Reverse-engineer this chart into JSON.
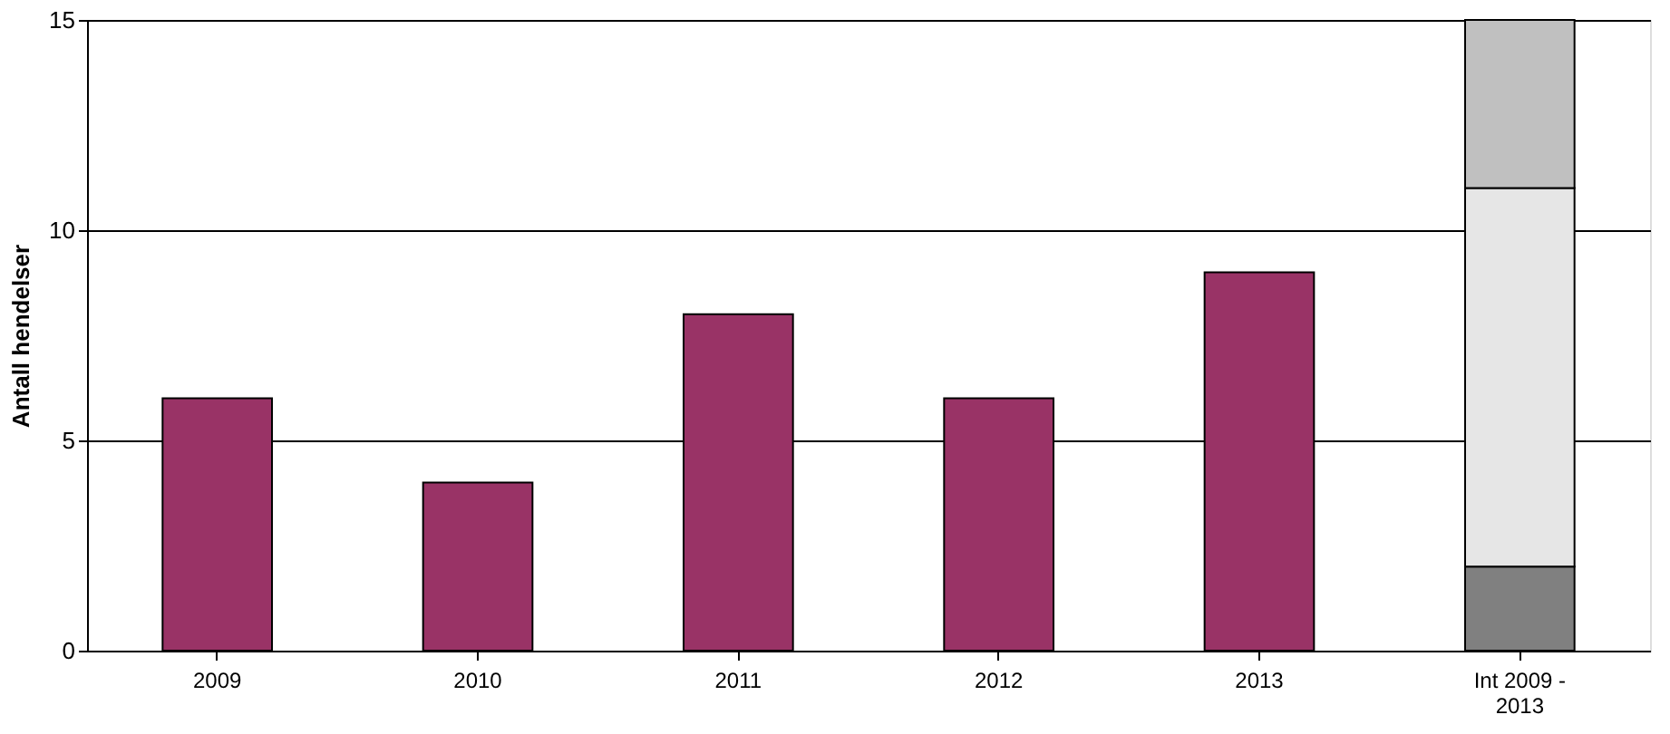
{
  "chart_data": {
    "type": "bar",
    "stacked": true,
    "ylabel": "Antall hendelser",
    "categories": [
      "2009",
      "2010",
      "2011",
      "2012",
      "2013",
      "Int 2009 - 2013"
    ],
    "series": [
      {
        "colors": [
          "#993366",
          "#993366",
          "#993366",
          "#993366",
          "#993366",
          "#808080"
        ],
        "values": [
          6,
          4,
          8,
          6,
          9,
          2
        ]
      },
      {
        "color": "#e6e6e6",
        "values": [
          null,
          null,
          null,
          null,
          null,
          9
        ]
      },
      {
        "color": "#c0c0c0",
        "values": [
          null,
          null,
          null,
          null,
          null,
          4
        ]
      }
    ],
    "ylim": [
      0,
      15
    ],
    "yticks": [
      0,
      5,
      10,
      15
    ],
    "grid": "y"
  }
}
